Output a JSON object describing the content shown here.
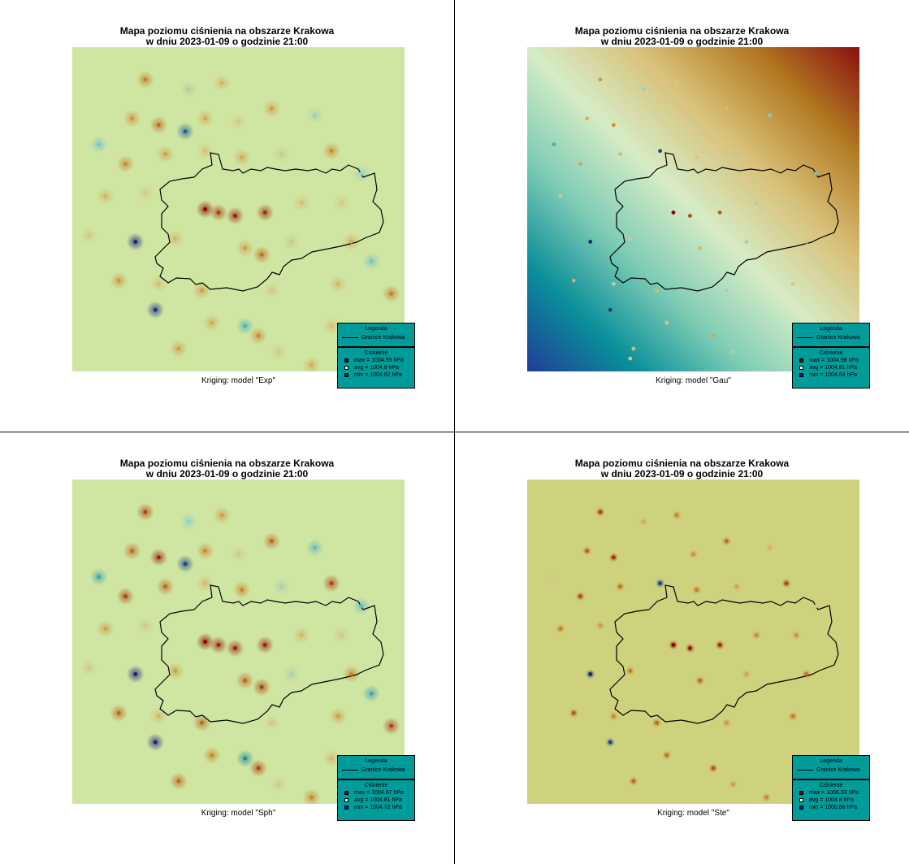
{
  "panels": [
    {
      "title_line1": "Mapa poziomu ciśnienia na obszarze Krakowa",
      "title_line2": "w dniu 2023-01-09 o godzinie 21:00",
      "subtitle": "Kriging: model \"Exp\"",
      "legend": {
        "title": "Legenda",
        "boundary_label": "Granice Krakowa",
        "pressure_title": "Ciśnienie",
        "max_label": "max =  1004.95 hPa",
        "avg_label": "avg =  1004.8 hPa",
        "min_label": "min =  1004.62 hPa"
      }
    },
    {
      "title_line1": "Mapa poziomu ciśnienia na obszarze Krakowa",
      "title_line2": "w dniu 2023-01-09 o godzinie 21:00",
      "subtitle": "Kriging: model \"Gau\"",
      "legend": {
        "title": "Legenda",
        "boundary_label": "Granice Krakowa",
        "pressure_title": "Ciśnienie",
        "max_label": "max =  1004.98 hPa",
        "avg_label": "avg =  1004.81 hPa",
        "min_label": "min =  1004.64 hPa"
      }
    },
    {
      "title_line1": "Mapa poziomu ciśnienia na obszarze Krakowa",
      "title_line2": "w dniu 2023-01-09 o godzinie 21:00",
      "subtitle": "Kriging: model \"Sph\"",
      "legend": {
        "title": "Legenda",
        "boundary_label": "Granice Krakowa",
        "pressure_title": "Ciśnienie",
        "max_label": "max =  1004.87 hPa",
        "avg_label": "avg =  1004.81 hPa",
        "min_label": "min =  1004.72 hPa"
      }
    },
    {
      "title_line1": "Mapa poziomu ciśnienia na obszarze Krakowa",
      "title_line2": "w dniu 2023-01-09 o godzinie 21:00",
      "subtitle": "Kriging: model \"Ste\"",
      "legend": {
        "title": "Legenda",
        "boundary_label": "Granice Krakowa",
        "pressure_title": "Ciśnienie",
        "max_label": "max =  1006.33 hPa",
        "avg_label": "avg =  1004.8 hPa",
        "min_label": "min =  1000.88 hPa"
      }
    }
  ],
  "colors": {
    "legend_bg": "#009c9c",
    "max_swatch": "#8b0000",
    "avg_swatch": "#fffbe6",
    "min_swatch": "#1a237e",
    "exp_background": "#cfe6a2",
    "sph_background": "#cfe6a2",
    "ste_background": "#cfd27c",
    "gau_gradient": [
      "#1f3d99",
      "#0b8f9a",
      "#7fcdb5",
      "#d6ecc6",
      "#d8c078",
      "#b27a22",
      "#8a1010"
    ]
  },
  "chart_data": [
    {
      "type": "heatmap",
      "model": "Exp",
      "stations": [
        {
          "x": 0.22,
          "y": 0.1,
          "v": 1004.87
        },
        {
          "x": 0.35,
          "y": 0.13,
          "v": 1004.78
        },
        {
          "x": 0.45,
          "y": 0.11,
          "v": 1004.82
        },
        {
          "x": 0.18,
          "y": 0.22,
          "v": 1004.85
        },
        {
          "x": 0.26,
          "y": 0.24,
          "v": 1004.88
        },
        {
          "x": 0.34,
          "y": 0.26,
          "v": 1004.66
        },
        {
          "x": 0.4,
          "y": 0.22,
          "v": 1004.83
        },
        {
          "x": 0.5,
          "y": 0.23,
          "v": 1004.8
        },
        {
          "x": 0.6,
          "y": 0.19,
          "v": 1004.84
        },
        {
          "x": 0.73,
          "y": 0.21,
          "v": 1004.77
        },
        {
          "x": 0.08,
          "y": 0.3,
          "v": 1004.74
        },
        {
          "x": 0.16,
          "y": 0.36,
          "v": 1004.86
        },
        {
          "x": 0.28,
          "y": 0.33,
          "v": 1004.84
        },
        {
          "x": 0.4,
          "y": 0.32,
          "v": 1004.81
        },
        {
          "x": 0.51,
          "y": 0.34,
          "v": 1004.83
        },
        {
          "x": 0.63,
          "y": 0.33,
          "v": 1004.79
        },
        {
          "x": 0.78,
          "y": 0.32,
          "v": 1004.86
        },
        {
          "x": 0.87,
          "y": 0.39,
          "v": 1004.76
        },
        {
          "x": 0.1,
          "y": 0.46,
          "v": 1004.82
        },
        {
          "x": 0.22,
          "y": 0.45,
          "v": 1004.8
        },
        {
          "x": 0.4,
          "y": 0.5,
          "v": 1004.95
        },
        {
          "x": 0.44,
          "y": 0.51,
          "v": 1004.91
        },
        {
          "x": 0.49,
          "y": 0.52,
          "v": 1004.93
        },
        {
          "x": 0.58,
          "y": 0.51,
          "v": 1004.92
        },
        {
          "x": 0.69,
          "y": 0.48,
          "v": 1004.81
        },
        {
          "x": 0.81,
          "y": 0.48,
          "v": 1004.8
        },
        {
          "x": 0.19,
          "y": 0.6,
          "v": 1004.62
        },
        {
          "x": 0.31,
          "y": 0.59,
          "v": 1004.82
        },
        {
          "x": 0.52,
          "y": 0.62,
          "v": 1004.84
        },
        {
          "x": 0.57,
          "y": 0.64,
          "v": 1004.88
        },
        {
          "x": 0.66,
          "y": 0.6,
          "v": 1004.79
        },
        {
          "x": 0.84,
          "y": 0.6,
          "v": 1004.83
        },
        {
          "x": 0.9,
          "y": 0.66,
          "v": 1004.74
        },
        {
          "x": 0.14,
          "y": 0.72,
          "v": 1004.85
        },
        {
          "x": 0.26,
          "y": 0.73,
          "v": 1004.81
        },
        {
          "x": 0.39,
          "y": 0.75,
          "v": 1004.84
        },
        {
          "x": 0.6,
          "y": 0.75,
          "v": 1004.8
        },
        {
          "x": 0.8,
          "y": 0.73,
          "v": 1004.82
        },
        {
          "x": 0.96,
          "y": 0.76,
          "v": 1004.87
        },
        {
          "x": 0.25,
          "y": 0.81,
          "v": 1004.63
        },
        {
          "x": 0.42,
          "y": 0.85,
          "v": 1004.83
        },
        {
          "x": 0.52,
          "y": 0.86,
          "v": 1004.72
        },
        {
          "x": 0.56,
          "y": 0.89,
          "v": 1004.86
        },
        {
          "x": 0.78,
          "y": 0.86,
          "v": 1004.81
        },
        {
          "x": 0.32,
          "y": 0.93,
          "v": 1004.84
        },
        {
          "x": 0.62,
          "y": 0.94,
          "v": 1004.8
        },
        {
          "x": 0.72,
          "y": 0.98,
          "v": 1004.83
        },
        {
          "x": 0.05,
          "y": 0.58,
          "v": 1004.8
        }
      ]
    },
    {
      "type": "heatmap",
      "model": "Gau",
      "trend": "gradient from low (bottom-left) to high (top-right)",
      "stations": [
        {
          "x": 0.22,
          "y": 0.1,
          "v": 1004.87
        },
        {
          "x": 0.35,
          "y": 0.13,
          "v": 1004.78
        },
        {
          "x": 0.45,
          "y": 0.11,
          "v": 1004.82
        },
        {
          "x": 0.18,
          "y": 0.22,
          "v": 1004.85
        },
        {
          "x": 0.26,
          "y": 0.24,
          "v": 1004.88
        },
        {
          "x": 0.4,
          "y": 0.32,
          "v": 1004.66
        },
        {
          "x": 0.5,
          "y": 0.23,
          "v": 1004.8
        },
        {
          "x": 0.6,
          "y": 0.19,
          "v": 1004.84
        },
        {
          "x": 0.73,
          "y": 0.21,
          "v": 1004.77
        },
        {
          "x": 0.08,
          "y": 0.3,
          "v": 1004.74
        },
        {
          "x": 0.16,
          "y": 0.36,
          "v": 1004.86
        },
        {
          "x": 0.28,
          "y": 0.33,
          "v": 1004.84
        },
        {
          "x": 0.51,
          "y": 0.34,
          "v": 1004.83
        },
        {
          "x": 0.63,
          "y": 0.33,
          "v": 1004.79
        },
        {
          "x": 0.78,
          "y": 0.32,
          "v": 1004.86
        },
        {
          "x": 0.87,
          "y": 0.39,
          "v": 1004.76
        },
        {
          "x": 0.1,
          "y": 0.46,
          "v": 1004.82
        },
        {
          "x": 0.22,
          "y": 0.45,
          "v": 1004.8
        },
        {
          "x": 0.44,
          "y": 0.51,
          "v": 1004.98
        },
        {
          "x": 0.49,
          "y": 0.52,
          "v": 1004.93
        },
        {
          "x": 0.58,
          "y": 0.51,
          "v": 1004.92
        },
        {
          "x": 0.69,
          "y": 0.48,
          "v": 1004.81
        },
        {
          "x": 0.81,
          "y": 0.48,
          "v": 1004.8
        },
        {
          "x": 0.19,
          "y": 0.6,
          "v": 1004.64
        },
        {
          "x": 0.31,
          "y": 0.59,
          "v": 1004.82
        },
        {
          "x": 0.52,
          "y": 0.62,
          "v": 1004.84
        },
        {
          "x": 0.66,
          "y": 0.6,
          "v": 1004.79
        },
        {
          "x": 0.84,
          "y": 0.6,
          "v": 1004.83
        },
        {
          "x": 0.14,
          "y": 0.72,
          "v": 1004.85
        },
        {
          "x": 0.26,
          "y": 0.73,
          "v": 1004.81
        },
        {
          "x": 0.39,
          "y": 0.75,
          "v": 1004.84
        },
        {
          "x": 0.6,
          "y": 0.75,
          "v": 1004.8
        },
        {
          "x": 0.8,
          "y": 0.73,
          "v": 1004.82
        },
        {
          "x": 0.25,
          "y": 0.81,
          "v": 1004.65
        },
        {
          "x": 0.42,
          "y": 0.85,
          "v": 1004.83
        },
        {
          "x": 0.56,
          "y": 0.89,
          "v": 1004.86
        },
        {
          "x": 0.32,
          "y": 0.93,
          "v": 1004.84
        },
        {
          "x": 0.62,
          "y": 0.94,
          "v": 1004.8
        },
        {
          "x": 0.31,
          "y": 0.96,
          "v": 1004.82
        }
      ]
    },
    {
      "type": "heatmap",
      "model": "Sph",
      "stations": [
        {
          "x": 0.22,
          "y": 0.1,
          "v": 1004.85
        },
        {
          "x": 0.35,
          "y": 0.13,
          "v": 1004.78
        },
        {
          "x": 0.45,
          "y": 0.11,
          "v": 1004.82
        },
        {
          "x": 0.18,
          "y": 0.22,
          "v": 1004.84
        },
        {
          "x": 0.26,
          "y": 0.24,
          "v": 1004.86
        },
        {
          "x": 0.34,
          "y": 0.26,
          "v": 1004.73
        },
        {
          "x": 0.4,
          "y": 0.22,
          "v": 1004.83
        },
        {
          "x": 0.5,
          "y": 0.23,
          "v": 1004.8
        },
        {
          "x": 0.6,
          "y": 0.19,
          "v": 1004.84
        },
        {
          "x": 0.73,
          "y": 0.21,
          "v": 1004.77
        },
        {
          "x": 0.08,
          "y": 0.3,
          "v": 1004.76
        },
        {
          "x": 0.16,
          "y": 0.36,
          "v": 1004.85
        },
        {
          "x": 0.28,
          "y": 0.33,
          "v": 1004.84
        },
        {
          "x": 0.4,
          "y": 0.32,
          "v": 1004.81
        },
        {
          "x": 0.51,
          "y": 0.34,
          "v": 1004.83
        },
        {
          "x": 0.63,
          "y": 0.33,
          "v": 1004.79
        },
        {
          "x": 0.78,
          "y": 0.32,
          "v": 1004.85
        },
        {
          "x": 0.87,
          "y": 0.39,
          "v": 1004.77
        },
        {
          "x": 0.1,
          "y": 0.46,
          "v": 1004.82
        },
        {
          "x": 0.22,
          "y": 0.45,
          "v": 1004.8
        },
        {
          "x": 0.4,
          "y": 0.5,
          "v": 1004.87
        },
        {
          "x": 0.44,
          "y": 0.51,
          "v": 1004.86
        },
        {
          "x": 0.49,
          "y": 0.52,
          "v": 1004.86
        },
        {
          "x": 0.58,
          "y": 0.51,
          "v": 1004.86
        },
        {
          "x": 0.69,
          "y": 0.48,
          "v": 1004.81
        },
        {
          "x": 0.81,
          "y": 0.48,
          "v": 1004.8
        },
        {
          "x": 0.19,
          "y": 0.6,
          "v": 1004.72
        },
        {
          "x": 0.31,
          "y": 0.59,
          "v": 1004.82
        },
        {
          "x": 0.52,
          "y": 0.62,
          "v": 1004.84
        },
        {
          "x": 0.57,
          "y": 0.64,
          "v": 1004.85
        },
        {
          "x": 0.66,
          "y": 0.6,
          "v": 1004.79
        },
        {
          "x": 0.84,
          "y": 0.6,
          "v": 1004.83
        },
        {
          "x": 0.9,
          "y": 0.66,
          "v": 1004.76
        },
        {
          "x": 0.14,
          "y": 0.72,
          "v": 1004.84
        },
        {
          "x": 0.26,
          "y": 0.73,
          "v": 1004.81
        },
        {
          "x": 0.39,
          "y": 0.75,
          "v": 1004.84
        },
        {
          "x": 0.6,
          "y": 0.75,
          "v": 1004.8
        },
        {
          "x": 0.8,
          "y": 0.73,
          "v": 1004.82
        },
        {
          "x": 0.96,
          "y": 0.76,
          "v": 1004.85
        },
        {
          "x": 0.25,
          "y": 0.81,
          "v": 1004.72
        },
        {
          "x": 0.42,
          "y": 0.85,
          "v": 1004.83
        },
        {
          "x": 0.52,
          "y": 0.86,
          "v": 1004.75
        },
        {
          "x": 0.56,
          "y": 0.89,
          "v": 1004.85
        },
        {
          "x": 0.78,
          "y": 0.86,
          "v": 1004.81
        },
        {
          "x": 0.32,
          "y": 0.93,
          "v": 1004.84
        },
        {
          "x": 0.62,
          "y": 0.94,
          "v": 1004.8
        },
        {
          "x": 0.72,
          "y": 0.98,
          "v": 1004.83
        },
        {
          "x": 0.05,
          "y": 0.58,
          "v": 1004.8
        }
      ]
    },
    {
      "type": "heatmap",
      "model": "Ste",
      "stations": [
        {
          "x": 0.22,
          "y": 0.1,
          "v": 1005.6
        },
        {
          "x": 0.35,
          "y": 0.13,
          "v": 1004.3
        },
        {
          "x": 0.45,
          "y": 0.11,
          "v": 1004.9
        },
        {
          "x": 0.18,
          "y": 0.22,
          "v": 1005.3
        },
        {
          "x": 0.26,
          "y": 0.24,
          "v": 1005.8
        },
        {
          "x": 0.4,
          "y": 0.32,
          "v": 1001.2
        },
        {
          "x": 0.5,
          "y": 0.23,
          "v": 1004.7
        },
        {
          "x": 0.6,
          "y": 0.19,
          "v": 1005.2
        },
        {
          "x": 0.73,
          "y": 0.21,
          "v": 1004.2
        },
        {
          "x": 0.08,
          "y": 0.3,
          "v": 1003.8
        },
        {
          "x": 0.16,
          "y": 0.36,
          "v": 1005.5
        },
        {
          "x": 0.28,
          "y": 0.33,
          "v": 1005.1
        },
        {
          "x": 0.51,
          "y": 0.34,
          "v": 1005.0
        },
        {
          "x": 0.63,
          "y": 0.33,
          "v": 1004.4
        },
        {
          "x": 0.78,
          "y": 0.32,
          "v": 1005.6
        },
        {
          "x": 0.87,
          "y": 0.39,
          "v": 1003.9
        },
        {
          "x": 0.1,
          "y": 0.46,
          "v": 1005.0
        },
        {
          "x": 0.22,
          "y": 0.45,
          "v": 1004.6
        },
        {
          "x": 0.44,
          "y": 0.51,
          "v": 1006.33
        },
        {
          "x": 0.49,
          "y": 0.52,
          "v": 1006.1
        },
        {
          "x": 0.58,
          "y": 0.51,
          "v": 1005.9
        },
        {
          "x": 0.69,
          "y": 0.48,
          "v": 1004.8
        },
        {
          "x": 0.81,
          "y": 0.48,
          "v": 1004.7
        },
        {
          "x": 0.19,
          "y": 0.6,
          "v": 1000.88
        },
        {
          "x": 0.31,
          "y": 0.59,
          "v": 1005.0
        },
        {
          "x": 0.52,
          "y": 0.62,
          "v": 1005.2
        },
        {
          "x": 0.66,
          "y": 0.6,
          "v": 1004.4
        },
        {
          "x": 0.84,
          "y": 0.6,
          "v": 1005.1
        },
        {
          "x": 0.14,
          "y": 0.72,
          "v": 1005.4
        },
        {
          "x": 0.26,
          "y": 0.73,
          "v": 1004.8
        },
        {
          "x": 0.39,
          "y": 0.75,
          "v": 1005.2
        },
        {
          "x": 0.6,
          "y": 0.75,
          "v": 1004.6
        },
        {
          "x": 0.8,
          "y": 0.73,
          "v": 1005.0
        },
        {
          "x": 0.25,
          "y": 0.81,
          "v": 1001.3
        },
        {
          "x": 0.42,
          "y": 0.85,
          "v": 1005.1
        },
        {
          "x": 0.56,
          "y": 0.89,
          "v": 1005.4
        },
        {
          "x": 0.32,
          "y": 0.93,
          "v": 1005.2
        },
        {
          "x": 0.62,
          "y": 0.94,
          "v": 1004.5
        },
        {
          "x": 0.72,
          "y": 0.98,
          "v": 1004.9
        }
      ]
    }
  ]
}
